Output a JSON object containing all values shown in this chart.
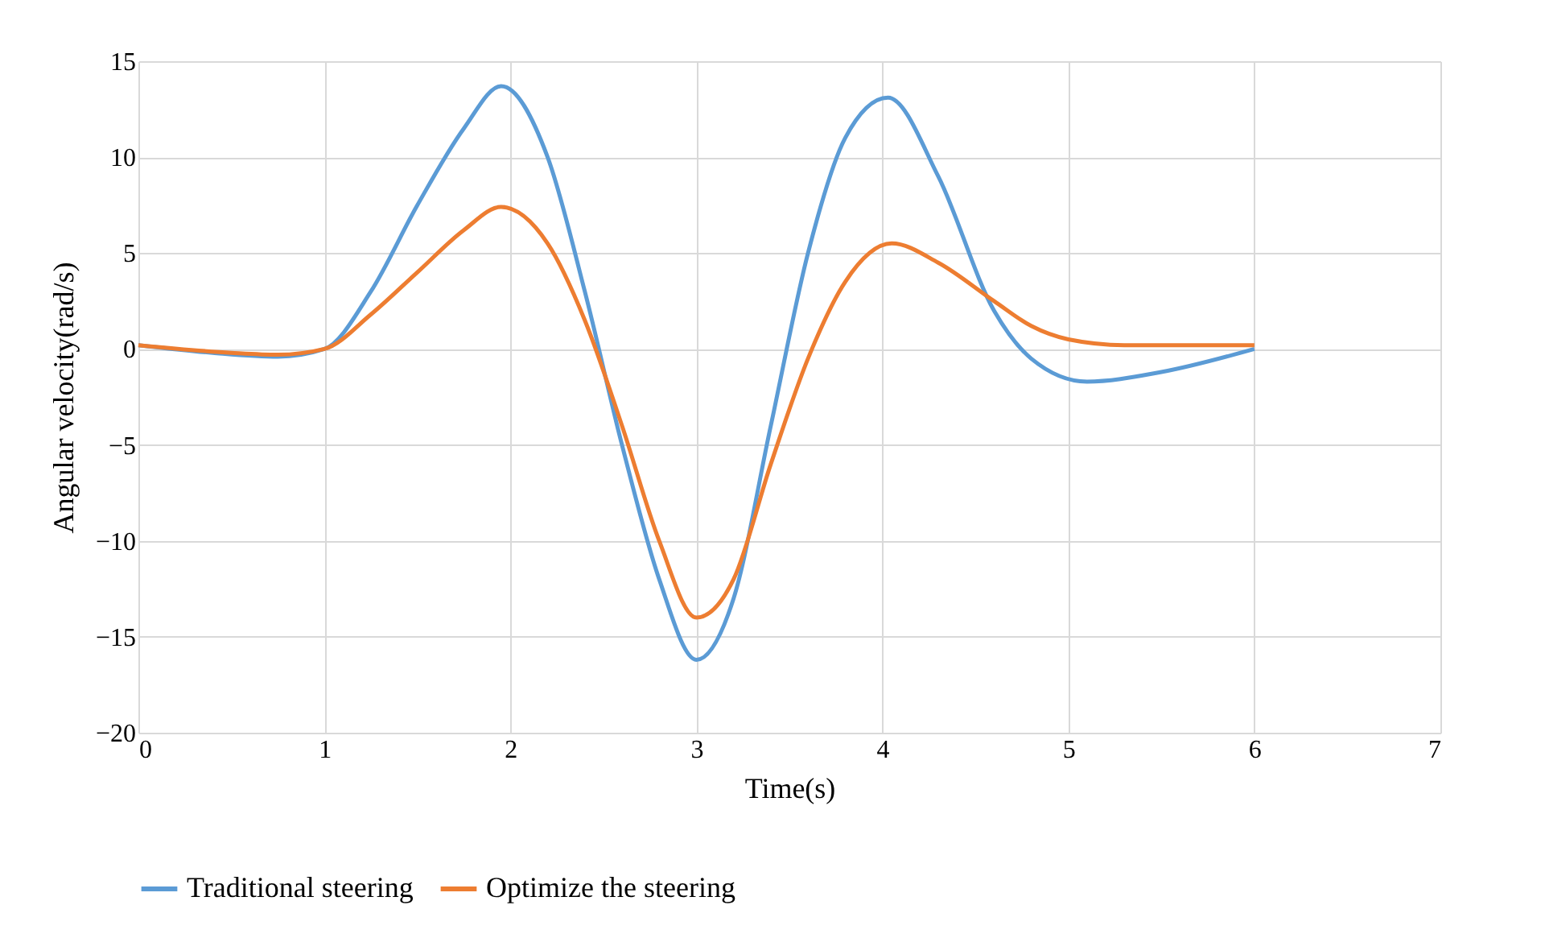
{
  "chart_data": {
    "type": "line",
    "xlabel": "Time(s)",
    "ylabel": "Angular velocity(rad/s)",
    "xlim": [
      0,
      7
    ],
    "xticks": [
      0,
      1,
      2,
      3,
      4,
      5,
      6,
      7
    ],
    "ylim": [
      -20,
      15
    ],
    "yticks": [
      -20,
      -15,
      -10,
      -5,
      0,
      5,
      10,
      15
    ],
    "grid": true,
    "legend": "bottom",
    "marker": "none",
    "line_style": "solid",
    "series": [
      {
        "name": "Traditional steering",
        "color": "#5b9bd5",
        "x": [
          0,
          0.4,
          0.75,
          1,
          1.25,
          1.5,
          1.75,
          1.95,
          2.2,
          2.4,
          2.6,
          2.8,
          3,
          3.2,
          3.4,
          3.6,
          3.8,
          4.03,
          4.3,
          4.6,
          4.8,
          5.1,
          5.5,
          6
        ],
        "values": [
          0.2,
          -0.2,
          -0.4,
          0,
          3,
          7.5,
          11.5,
          13.7,
          10,
          3,
          -5,
          -12,
          -16.2,
          -13,
          -4,
          5,
          11,
          13.1,
          9,
          2,
          -0.5,
          -1.7,
          -1.2,
          0
        ]
      },
      {
        "name": "Optimize the steering",
        "color": "#ed7d31",
        "x": [
          0,
          0.5,
          0.75,
          1,
          1.25,
          1.5,
          1.75,
          1.95,
          2.2,
          2.4,
          2.6,
          2.8,
          3,
          3.2,
          3.4,
          3.6,
          3.8,
          4.05,
          4.3,
          4.6,
          4.8,
          5,
          5.3,
          6
        ],
        "values": [
          0.2,
          -0.2,
          -0.3,
          0,
          1.8,
          4,
          6.2,
          7.4,
          5.5,
          1.5,
          -4,
          -10,
          -14,
          -12,
          -6,
          -0.5,
          3.5,
          5.5,
          4.5,
          2.5,
          1.2,
          0.5,
          0.2,
          0.2
        ]
      }
    ]
  }
}
